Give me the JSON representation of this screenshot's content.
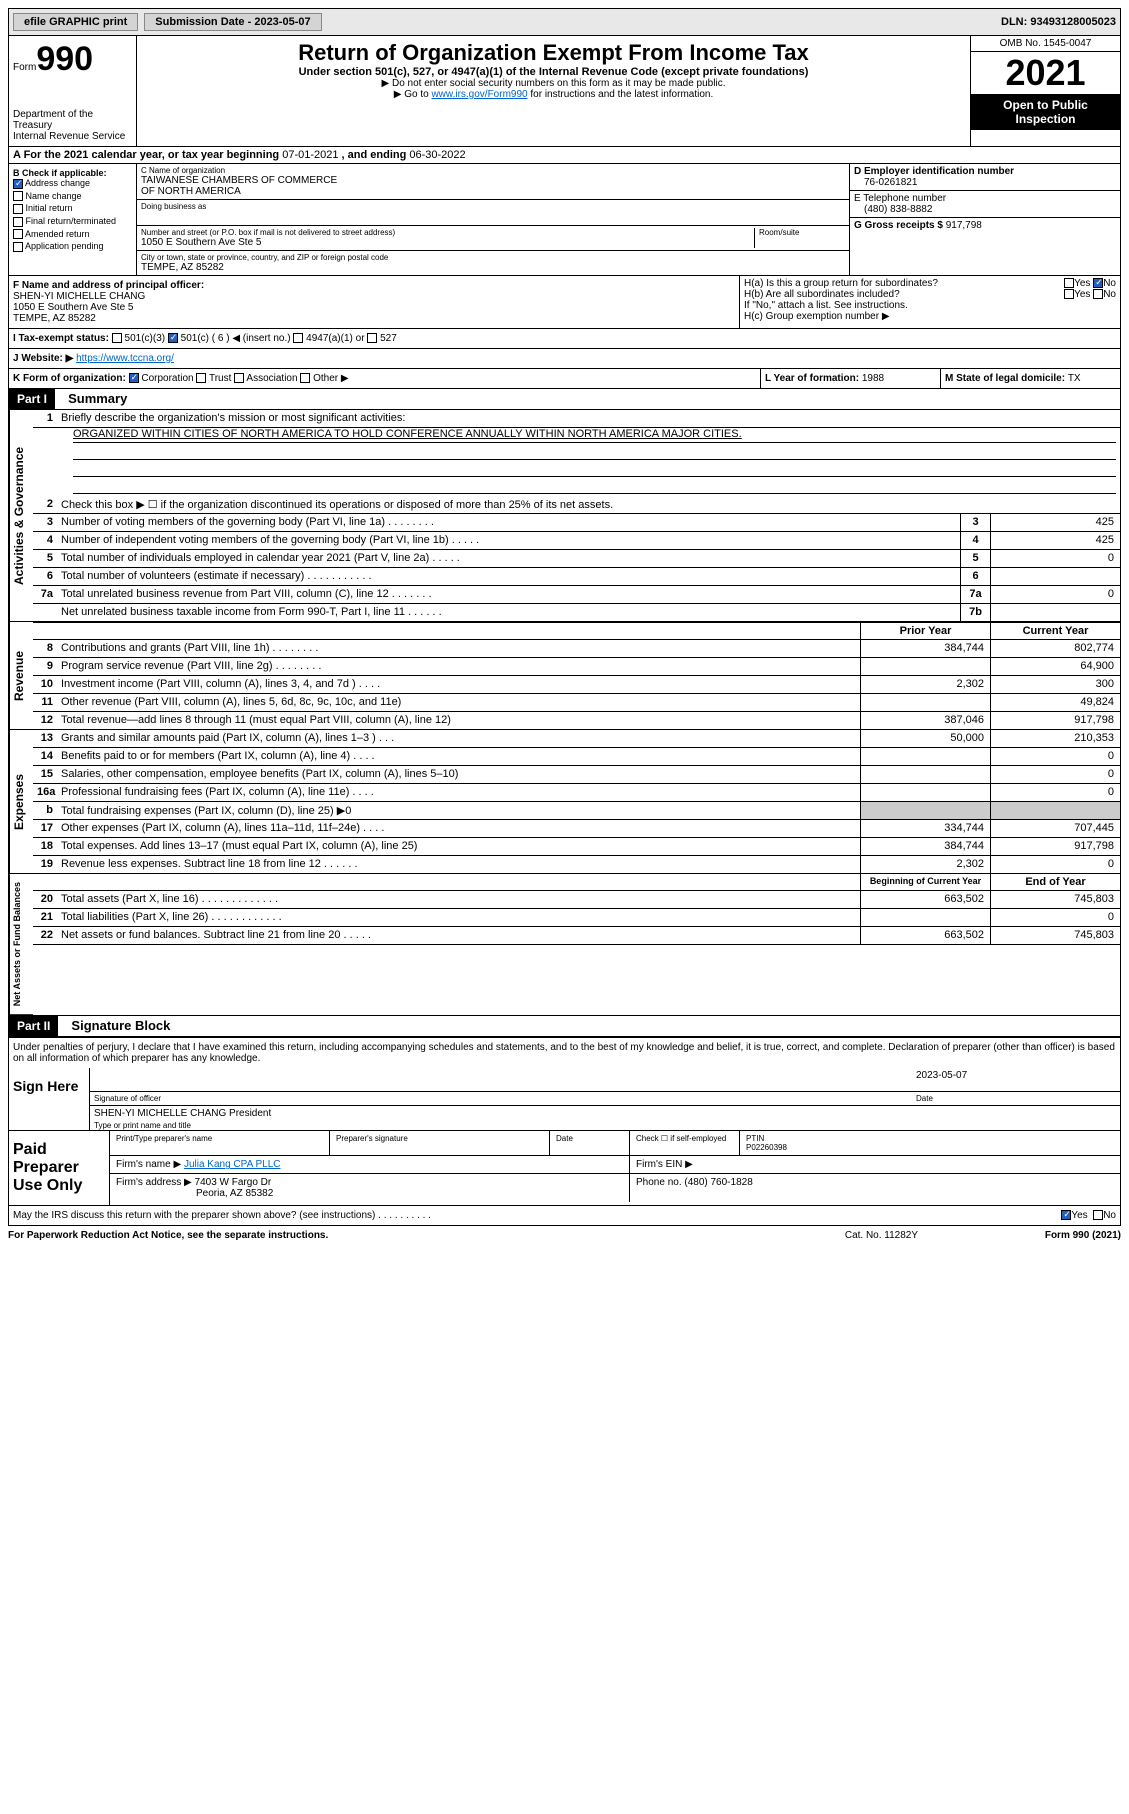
{
  "topbar": {
    "efile": "efile GRAPHIC print",
    "subdate_label": "Submission Date - ",
    "subdate": "2023-05-07",
    "dln_label": "DLN: ",
    "dln": "93493128005023"
  },
  "header": {
    "form_prefix": "Form",
    "form_num": "990",
    "dept1": "Department of the Treasury",
    "dept2": "Internal Revenue Service",
    "title": "Return of Organization Exempt From Income Tax",
    "sub1": "Under section 501(c), 527, or 4947(a)(1) of the Internal Revenue Code (except private foundations)",
    "sub2": "▶ Do not enter social security numbers on this form as it may be made public.",
    "sub3_pre": "▶ Go to ",
    "sub3_link": "www.irs.gov/Form990",
    "sub3_post": " for instructions and the latest information.",
    "omb": "OMB No. 1545-0047",
    "year": "2021",
    "inspect": "Open to Public Inspection"
  },
  "row_a": {
    "label": "A For the 2021 calendar year, or tax year beginning ",
    "begin": "07-01-2021",
    "mid": " , and ending ",
    "end": "06-30-2022"
  },
  "col_b": {
    "label": "B Check if applicable:",
    "items": [
      "Address change",
      "Name change",
      "Initial return",
      "Final return/terminated",
      "Amended return",
      "Application pending"
    ],
    "checked": [
      true,
      false,
      false,
      false,
      false,
      false
    ]
  },
  "col_c": {
    "label_name": "C Name of organization",
    "name1": "TAIWANESE CHAMBERS OF COMMERCE",
    "name2": "OF NORTH AMERICA",
    "dba_label": "Doing business as",
    "addr_label": "Number and street (or P.O. box if mail is not delivered to street address)",
    "room_label": "Room/suite",
    "addr": "1050 E Southern Ave Ste 5",
    "city_label": "City or town, state or province, country, and ZIP or foreign postal code",
    "city": "TEMPE, AZ  85282"
  },
  "col_d": {
    "ein_label": "D Employer identification number",
    "ein": "76-0261821",
    "tel_label": "E Telephone number",
    "tel": "(480) 838-8882",
    "gross_label": "G Gross receipts $ ",
    "gross": "917,798"
  },
  "row_f": {
    "label": "F Name and address of principal officer:",
    "name": "SHEN-YI MICHELLE CHANG",
    "addr1": "1050 E Southern Ave Ste 5",
    "addr2": "TEMPE, AZ  85282"
  },
  "row_h": {
    "ha": "H(a)  Is this a group return for subordinates?",
    "ha_yes": "Yes",
    "ha_no": "No",
    "hb": "H(b)  Are all subordinates included?",
    "hb_yes": "Yes",
    "hb_no": "No",
    "hb_note": "If \"No,\" attach a list. See instructions.",
    "hc": "H(c)  Group exemption number ▶"
  },
  "row_i": {
    "label": "I  Tax-exempt status:",
    "opts": [
      "501(c)(3)",
      "501(c) ( 6 ) ◀ (insert no.)",
      "4947(a)(1) or",
      "527"
    ],
    "checked_idx": 1
  },
  "row_j": {
    "label": "J  Website: ▶ ",
    "url": "https://www.tccna.org/"
  },
  "row_k": {
    "label": "K Form of organization:",
    "opts": [
      "Corporation",
      "Trust",
      "Association",
      "Other ▶"
    ],
    "checked_idx": 0,
    "l_label": "L Year of formation: ",
    "l_val": "1988",
    "m_label": "M State of legal domicile: ",
    "m_val": "TX"
  },
  "part1": {
    "hdr": "Part I",
    "title": "Summary"
  },
  "sections": {
    "gov": {
      "label": "Activities & Governance",
      "l1_desc": "Briefly describe the organization's mission or most significant activities:",
      "l1_text": "ORGANIZED WITHIN CITIES OF NORTH AMERICA TO HOLD CONFERENCE ANNUALLY WITHIN NORTH AMERICA MAJOR CITIES.",
      "l2_desc": "Check this box ▶ ☐ if the organization discontinued its operations or disposed of more than 25% of its net assets.",
      "rows": [
        {
          "num": "3",
          "desc": "Number of voting members of the governing body (Part VI, line 1a)  .  .  .  .  .  .  .  .",
          "box": "3",
          "val": "425"
        },
        {
          "num": "4",
          "desc": "Number of independent voting members of the governing body (Part VI, line 1b)  .  .  .  .  .",
          "box": "4",
          "val": "425"
        },
        {
          "num": "5",
          "desc": "Total number of individuals employed in calendar year 2021 (Part V, line 2a)  .  .  .  .  .",
          "box": "5",
          "val": "0"
        },
        {
          "num": "6",
          "desc": "Total number of volunteers (estimate if necessary)  .  .  .  .  .  .  .  .  .  .  .",
          "box": "6",
          "val": ""
        },
        {
          "num": "7a",
          "desc": "Total unrelated business revenue from Part VIII, column (C), line 12  .  .  .  .  .  .  .",
          "box": "7a",
          "val": "0"
        },
        {
          "num": "",
          "desc": "Net unrelated business taxable income from Form 990-T, Part I, line 11  .  .  .  .  .  .",
          "box": "7b",
          "val": ""
        }
      ]
    },
    "rev": {
      "label": "Revenue",
      "hdr_prior": "Prior Year",
      "hdr_curr": "Current Year",
      "rows": [
        {
          "num": "8",
          "desc": "Contributions and grants (Part VIII, line 1h)  .  .  .  .  .  .  .  .",
          "prior": "384,744",
          "curr": "802,774"
        },
        {
          "num": "9",
          "desc": "Program service revenue (Part VIII, line 2g)  .  .  .  .  .  .  .  .",
          "prior": "",
          "curr": "64,900"
        },
        {
          "num": "10",
          "desc": "Investment income (Part VIII, column (A), lines 3, 4, and 7d )  .  .  .  .",
          "prior": "2,302",
          "curr": "300"
        },
        {
          "num": "11",
          "desc": "Other revenue (Part VIII, column (A), lines 5, 6d, 8c, 9c, 10c, and 11e)",
          "prior": "",
          "curr": "49,824"
        },
        {
          "num": "12",
          "desc": "Total revenue—add lines 8 through 11 (must equal Part VIII, column (A), line 12)",
          "prior": "387,046",
          "curr": "917,798"
        }
      ]
    },
    "exp": {
      "label": "Expenses",
      "rows": [
        {
          "num": "13",
          "desc": "Grants and similar amounts paid (Part IX, column (A), lines 1–3 )  .  .  .",
          "prior": "50,000",
          "curr": "210,353"
        },
        {
          "num": "14",
          "desc": "Benefits paid to or for members (Part IX, column (A), line 4)  .  .  .  .",
          "prior": "",
          "curr": "0"
        },
        {
          "num": "15",
          "desc": "Salaries, other compensation, employee benefits (Part IX, column (A), lines 5–10)",
          "prior": "",
          "curr": "0"
        },
        {
          "num": "16a",
          "desc": "Professional fundraising fees (Part IX, column (A), line 11e)  .  .  .  .",
          "prior": "",
          "curr": "0"
        },
        {
          "num": "b",
          "desc": "Total fundraising expenses (Part IX, column (D), line 25) ▶0",
          "prior": "G",
          "curr": "G"
        },
        {
          "num": "17",
          "desc": "Other expenses (Part IX, column (A), lines 11a–11d, 11f–24e)  .  .  .  .",
          "prior": "334,744",
          "curr": "707,445"
        },
        {
          "num": "18",
          "desc": "Total expenses. Add lines 13–17 (must equal Part IX, column (A), line 25)",
          "prior": "384,744",
          "curr": "917,798"
        },
        {
          "num": "19",
          "desc": "Revenue less expenses. Subtract line 18 from line 12  .  .  .  .  .  .",
          "prior": "2,302",
          "curr": "0"
        }
      ]
    },
    "net": {
      "label": "Net Assets or Fund Balances",
      "hdr_beg": "Beginning of Current Year",
      "hdr_end": "End of Year",
      "rows": [
        {
          "num": "20",
          "desc": "Total assets (Part X, line 16)  .  .  .  .  .  .  .  .  .  .  .  .  .",
          "prior": "663,502",
          "curr": "745,803"
        },
        {
          "num": "21",
          "desc": "Total liabilities (Part X, line 26)  .  .  .  .  .  .  .  .  .  .  .  .",
          "prior": "",
          "curr": "0"
        },
        {
          "num": "22",
          "desc": "Net assets or fund balances. Subtract line 21 from line 20  .  .  .  .  .",
          "prior": "663,502",
          "curr": "745,803"
        }
      ]
    }
  },
  "part2": {
    "hdr": "Part II",
    "title": "Signature Block",
    "decl": "Under penalties of perjury, I declare that I have examined this return, including accompanying schedules and statements, and to the best of my knowledge and belief, it is true, correct, and complete. Declaration of preparer (other than officer) is based on all information of which preparer has any knowledge."
  },
  "sign": {
    "label": "Sign Here",
    "sig_officer": "Signature of officer",
    "date_label": "Date",
    "date": "2023-05-07",
    "name": "SHEN-YI MICHELLE CHANG  President",
    "type_label": "Type or print name and title"
  },
  "prep": {
    "label": "Paid Preparer Use Only",
    "h_name": "Print/Type preparer's name",
    "h_sig": "Preparer's signature",
    "h_date": "Date",
    "h_check": "Check ☐ if self-employed",
    "h_ptin": "PTIN",
    "ptin": "P02260398",
    "firm_name_label": "Firm's name  ▶ ",
    "firm_name": "Julia Kang CPA PLLC",
    "firm_ein_label": "Firm's EIN ▶",
    "firm_addr_label": "Firm's address ▶ ",
    "firm_addr1": "7403 W Fargo Dr",
    "firm_addr2": "Peoria, AZ  85382",
    "phone_label": "Phone no. ",
    "phone": "(480) 760-1828"
  },
  "discuss": {
    "q": "May the IRS discuss this return with the preparer shown above? (see instructions)  .  .  .  .  .  .  .  .  .  .",
    "yes": "Yes",
    "no": "No"
  },
  "footer": {
    "pra": "For Paperwork Reduction Act Notice, see the separate instructions.",
    "cat": "Cat. No. 11282Y",
    "form": "Form 990 (2021)"
  }
}
